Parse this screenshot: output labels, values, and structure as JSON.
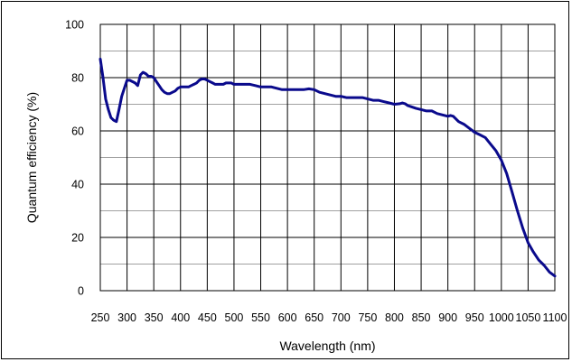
{
  "chart_data": {
    "type": "line",
    "title": "",
    "xlabel": "Wavelength (nm)",
    "ylabel": "Quantum efficiency (%)",
    "xlim": [
      250,
      1100
    ],
    "ylim": [
      0,
      100
    ],
    "grid": true,
    "x_ticks": [
      250,
      300,
      350,
      400,
      450,
      500,
      550,
      600,
      650,
      700,
      750,
      800,
      850,
      900,
      950,
      1000,
      1050,
      1100
    ],
    "x_tick_labels": [
      "250",
      "300",
      "350",
      "400",
      "450",
      "500",
      "550",
      "600",
      "650",
      "700",
      "750",
      "800",
      "850",
      "900",
      "950",
      "1000",
      "1050",
      "1100"
    ],
    "y_ticks": [
      0,
      20,
      40,
      60,
      80,
      100
    ],
    "y_tick_labels": [
      "0",
      "20",
      "40",
      "60",
      "80",
      "100"
    ],
    "colors": {
      "series": "#0a0a8c",
      "grid": "#000000",
      "minor_grid": "#a0a0a0"
    },
    "series": [
      {
        "x": [
          250,
          255,
          260,
          265,
          270,
          275,
          280,
          285,
          290,
          295,
          300,
          305,
          310,
          315,
          320,
          325,
          330,
          335,
          340,
          345,
          350,
          355,
          360,
          365,
          370,
          375,
          380,
          385,
          390,
          395,
          400,
          405,
          410,
          415,
          420,
          425,
          430,
          435,
          440,
          445,
          450,
          455,
          460,
          465,
          470,
          475,
          480,
          485,
          490,
          495,
          500,
          510,
          520,
          530,
          540,
          550,
          560,
          570,
          580,
          590,
          600,
          610,
          620,
          630,
          640,
          650,
          660,
          670,
          680,
          690,
          700,
          710,
          720,
          730,
          740,
          750,
          760,
          770,
          780,
          790,
          800,
          810,
          815,
          820,
          825,
          830,
          840,
          850,
          860,
          870,
          880,
          890,
          900,
          905,
          910,
          915,
          920,
          930,
          940,
          950,
          960,
          970,
          980,
          990,
          1000,
          1010,
          1020,
          1030,
          1040,
          1050,
          1060,
          1070,
          1080,
          1090,
          1100
        ],
        "y": [
          87,
          80,
          72,
          68,
          65,
          64,
          63.5,
          68,
          73,
          76,
          79,
          79,
          78.5,
          78,
          77,
          81,
          82,
          81.5,
          80.5,
          80.5,
          80,
          78.5,
          77,
          75.5,
          74.5,
          74,
          74,
          74.5,
          75,
          76,
          76.5,
          76.5,
          76.5,
          76.5,
          77,
          77.5,
          78,
          79,
          79.5,
          79.5,
          79,
          78.5,
          78,
          77.5,
          77.5,
          77.5,
          77.5,
          78,
          78,
          78,
          77.5,
          77.5,
          77.5,
          77.5,
          77,
          76.5,
          76.5,
          76.5,
          76,
          75.5,
          75.5,
          75.5,
          75.5,
          75.5,
          75.8,
          75.5,
          74.5,
          74,
          73.5,
          73,
          73,
          72.5,
          72.5,
          72.5,
          72.5,
          72,
          71.5,
          71.5,
          71,
          70.5,
          70,
          70.2,
          70.5,
          70.2,
          69.5,
          69.2,
          68.5,
          68,
          67.5,
          67.5,
          66.5,
          66,
          65.5,
          65.8,
          65.5,
          64.5,
          63.5,
          62.5,
          61,
          59.5,
          58.5,
          57.5,
          55,
          52.5,
          49,
          44,
          37,
          30,
          23.5,
          18,
          14.5,
          11.5,
          9.5,
          7,
          5.5
        ]
      }
    ]
  }
}
